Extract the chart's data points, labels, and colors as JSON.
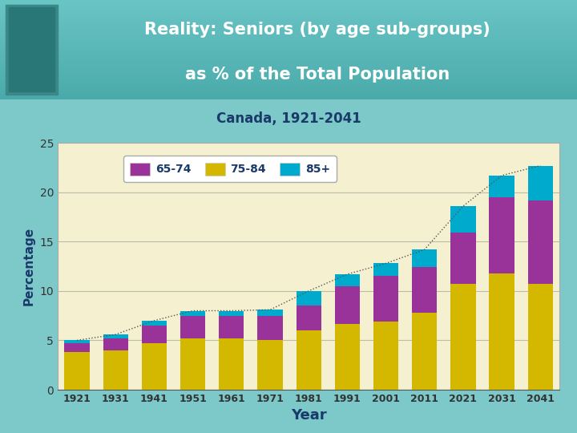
{
  "title_line1": "Reality: Seniors (by age sub-groups)",
  "title_line2": "as % of the Total Population",
  "subtitle": "Canada, 1921-2041",
  "years": [
    1921,
    1931,
    1941,
    1951,
    1961,
    1971,
    1981,
    1991,
    2001,
    2011,
    2021,
    2031,
    2041
  ],
  "age_75_84": [
    3.8,
    4.0,
    4.7,
    5.2,
    5.2,
    5.0,
    6.0,
    6.7,
    6.9,
    7.8,
    10.7,
    11.8,
    10.7
  ],
  "age_65_74": [
    0.9,
    1.2,
    1.8,
    2.3,
    2.3,
    2.5,
    2.5,
    3.8,
    4.6,
    4.6,
    5.2,
    7.7,
    8.5
  ],
  "age_85plus": [
    0.3,
    0.4,
    0.5,
    0.5,
    0.5,
    0.6,
    1.5,
    1.2,
    1.3,
    1.8,
    2.7,
    2.2,
    3.5
  ],
  "color_65_74": "#993399",
  "color_75_84": "#D4B800",
  "color_85plus": "#00AACC",
  "header_bg_top": "#4DBBBB",
  "header_bg_bot": "#7ACECE",
  "plot_bg": "#F5F0D0",
  "outer_bg_top": "#5DBCBC",
  "outer_bg_bot": "#A8D8D8",
  "ylabel": "Percentage",
  "xlabel": "Year",
  "ylim": [
    0,
    25
  ],
  "yticks": [
    0,
    5,
    10,
    15,
    20,
    25
  ],
  "title_color": "#FFFFFF",
  "subtitle_color": "#1A3A6A",
  "axis_label_color": "#1A3A6A",
  "tick_label_color": "#333333",
  "grid_color": "#BBBBAA"
}
